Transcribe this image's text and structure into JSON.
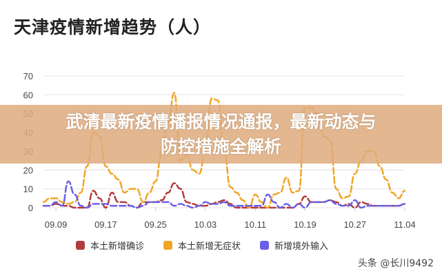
{
  "banner": {
    "line1": "武清最新疫情播报情况通报，最新动态与",
    "line2": "防控措施全解析"
  },
  "watermark": "头条 @长川9492",
  "chart_data": {
    "type": "line",
    "title": "天津疫情新增趋势（人）",
    "x_start": "09.07",
    "x_end": "11.04",
    "x_tick_labels": [
      "09.09",
      "09.17",
      "09.25",
      "10.03",
      "10.11",
      "10.19",
      "10.27",
      "11.04"
    ],
    "y_tick_labels": [
      "0",
      "10",
      "20",
      "30",
      "40",
      "50",
      "60",
      "70"
    ],
    "ylim": [
      0,
      70
    ],
    "grid": true,
    "legend": "bottom",
    "series": [
      {
        "name": "本土新增确诊",
        "color": "#b23c3c",
        "values": [
          1,
          1,
          2,
          1,
          1,
          0,
          0,
          0,
          9,
          5,
          0,
          8,
          3,
          3,
          1,
          0,
          3,
          3,
          3,
          4,
          8,
          13,
          10,
          3,
          2,
          1,
          1,
          2,
          3,
          4,
          2,
          0,
          0,
          0,
          0,
          0,
          0,
          0,
          0,
          0,
          0,
          2,
          6,
          3,
          3,
          3,
          4,
          3,
          1,
          2,
          0,
          3,
          2,
          1,
          1,
          1,
          1,
          1,
          2
        ]
      },
      {
        "name": "本土新增无症状",
        "color": "#f0a526",
        "values": [
          3,
          5,
          5,
          3,
          2,
          3,
          8,
          22,
          40,
          38,
          22,
          18,
          15,
          8,
          10,
          10,
          3,
          8,
          14,
          30,
          45,
          61,
          25,
          28,
          20,
          18,
          30,
          58,
          57,
          30,
          11,
          8,
          4,
          0,
          7,
          3,
          0,
          7,
          8,
          16,
          8,
          9,
          53,
          53,
          50,
          38,
          36,
          10,
          5,
          6,
          18,
          25,
          30,
          30,
          22,
          15,
          8,
          5,
          9
        ]
      },
      {
        "name": "新增境外输入",
        "color": "#6b5fe6",
        "values": [
          1,
          1,
          3,
          1,
          14,
          7,
          1,
          0,
          2,
          2,
          2,
          1,
          1,
          1,
          1,
          0,
          1,
          3,
          3,
          3,
          3,
          1,
          2,
          1,
          0,
          1,
          3,
          2,
          2,
          3,
          1,
          1,
          1,
          1,
          1,
          1,
          7,
          3,
          0,
          2,
          0,
          2,
          0,
          3,
          3,
          3,
          4,
          2,
          1,
          1,
          4,
          0,
          1,
          1,
          1,
          1,
          1,
          1,
          2
        ]
      }
    ]
  }
}
